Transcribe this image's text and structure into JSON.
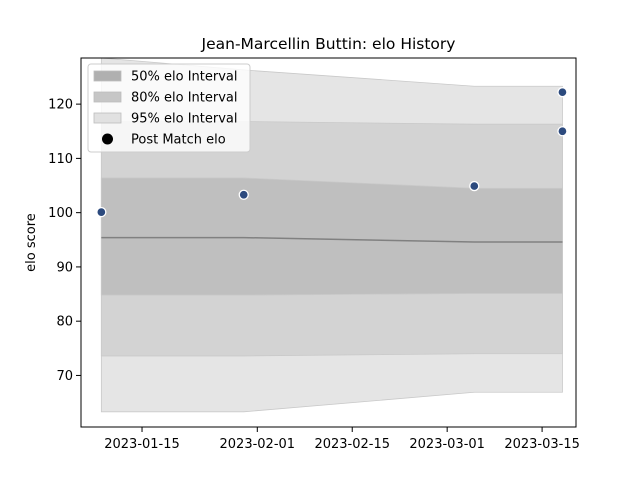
{
  "chart_data": {
    "type": "line",
    "title": "Jean-Marcellin Buttin: elo History",
    "xlabel": "",
    "ylabel": "elo score",
    "x_ticks": [
      "2023-01-15",
      "2023-02-01",
      "2023-02-15",
      "2023-03-01",
      "2023-03-15"
    ],
    "y_ticks": [
      70,
      80,
      90,
      100,
      110,
      120
    ],
    "xlim": [
      "2023-01-06",
      "2023-03-20"
    ],
    "ylim": [
      60.5,
      128.5
    ],
    "grid": false,
    "legend": {
      "placement": "top-left",
      "entries": [
        "50% elo Interval",
        "80% elo Interval",
        "95% elo Interval",
        "Post Match elo"
      ]
    },
    "band_x": [
      "2023-01-09",
      "2023-01-30",
      "2023-03-05",
      "2023-03-18"
    ],
    "mean_line": [
      95.4,
      95.4,
      94.6,
      94.6
    ],
    "intervals": [
      {
        "name": "95% elo Interval",
        "color": "#e5e5e5",
        "lower": [
          63.3,
          63.3,
          66.9,
          66.9
        ],
        "upper": [
          128.5,
          126.3,
          123.3,
          123.3
        ]
      },
      {
        "name": "80% elo Interval",
        "color": "#d3d3d3",
        "lower": [
          73.6,
          73.6,
          74.0,
          74.0
        ],
        "upper": [
          116.8,
          116.8,
          116.3,
          116.3
        ]
      },
      {
        "name": "50% elo Interval",
        "color": "#bfbfbf",
        "lower": [
          84.8,
          84.8,
          85.1,
          85.1
        ],
        "upper": [
          106.4,
          106.4,
          104.5,
          104.5
        ]
      }
    ],
    "series": [
      {
        "name": "Post Match elo",
        "color": "#2c4a7e",
        "x": [
          "2023-01-09",
          "2023-01-30",
          "2023-03-05",
          "2023-03-18",
          "2023-03-18"
        ],
        "y": [
          100.1,
          103.3,
          104.9,
          115.0,
          122.2
        ]
      }
    ]
  }
}
